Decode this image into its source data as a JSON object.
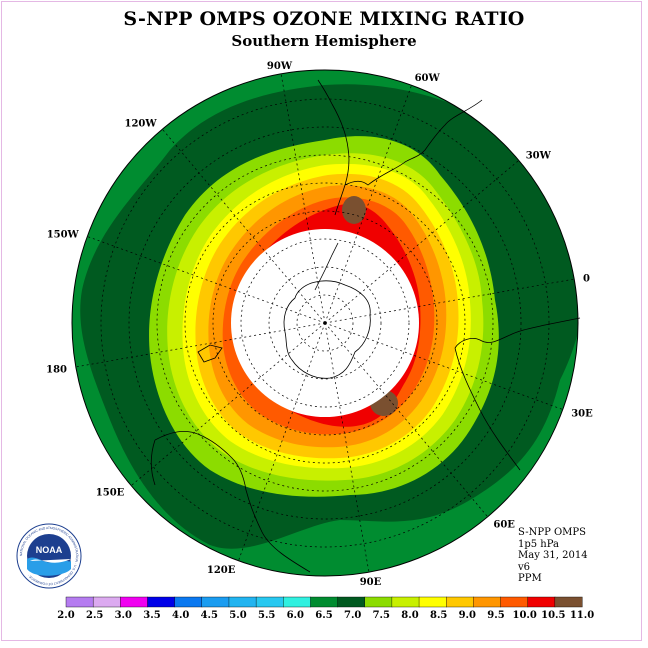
{
  "title": "S-NPP OMPS OZONE MIXING RATIO",
  "subtitle": "Southern Hemisphere",
  "longitude_labels": [
    {
      "id": "90w",
      "text": "90W",
      "lon": -90
    },
    {
      "id": "60w",
      "text": "60W",
      "lon": -60
    },
    {
      "id": "120w",
      "text": "120W",
      "lon": -120
    },
    {
      "id": "30w",
      "text": "30W",
      "lon": -30
    },
    {
      "id": "150w",
      "text": "150W",
      "lon": -150
    },
    {
      "id": "0",
      "text": "0",
      "lon": 0
    },
    {
      "id": "180",
      "text": "180",
      "lon": 180
    },
    {
      "id": "30e",
      "text": "30E",
      "lon": 30
    },
    {
      "id": "150e",
      "text": "150E",
      "lon": 150
    },
    {
      "id": "60e",
      "text": "60E",
      "lon": 60
    },
    {
      "id": "120e",
      "text": "120E",
      "lon": 120
    },
    {
      "id": "90e",
      "text": "90E",
      "lon": 90
    }
  ],
  "info": {
    "instrument": "S-NPP OMPS",
    "level": "1p5 hPa",
    "date": "May 31, 2014",
    "version": "v6",
    "units": "PPM"
  },
  "colorbar": {
    "labels": [
      "2.0",
      "2.5",
      "3.0",
      "3.5",
      "4.0",
      "4.5",
      "5.0",
      "5.5",
      "6.0",
      "6.5",
      "7.0",
      "7.5",
      "8.0",
      "8.5",
      "9.0",
      "9.5",
      "10.0",
      "10.5",
      "11.0"
    ],
    "colors": [
      "#b57cf0",
      "#dcaaf0",
      "#f000f0",
      "#0000e8",
      "#0a78f0",
      "#1a9cf0",
      "#22b4f0",
      "#28c8f0",
      "#30f0e0",
      "#008c30",
      "#005a20",
      "#8cdc00",
      "#c8f000",
      "#ffff00",
      "#ffc800",
      "#ff9600",
      "#ff5a00",
      "#f00000",
      "#7a5030"
    ]
  },
  "logo": {
    "text": "NOAA",
    "ring_text": "NATIONAL OCEANIC AND ATMOSPHERIC ADMINISTRATION · U.S. DEPARTMENT OF COMMERCE ·"
  },
  "map_colors": {
    "mid_green": "#008c30",
    "dark_green": "#005a20",
    "light_green": "#8cdc00",
    "yellow_green": "#c8f000",
    "yellow": "#ffff00",
    "light_orange": "#ffc800",
    "orange": "#ff9600",
    "dark_orange": "#ff5a00",
    "red": "#f00000",
    "brown": "#7a5030",
    "no_data": "#ffffff"
  }
}
